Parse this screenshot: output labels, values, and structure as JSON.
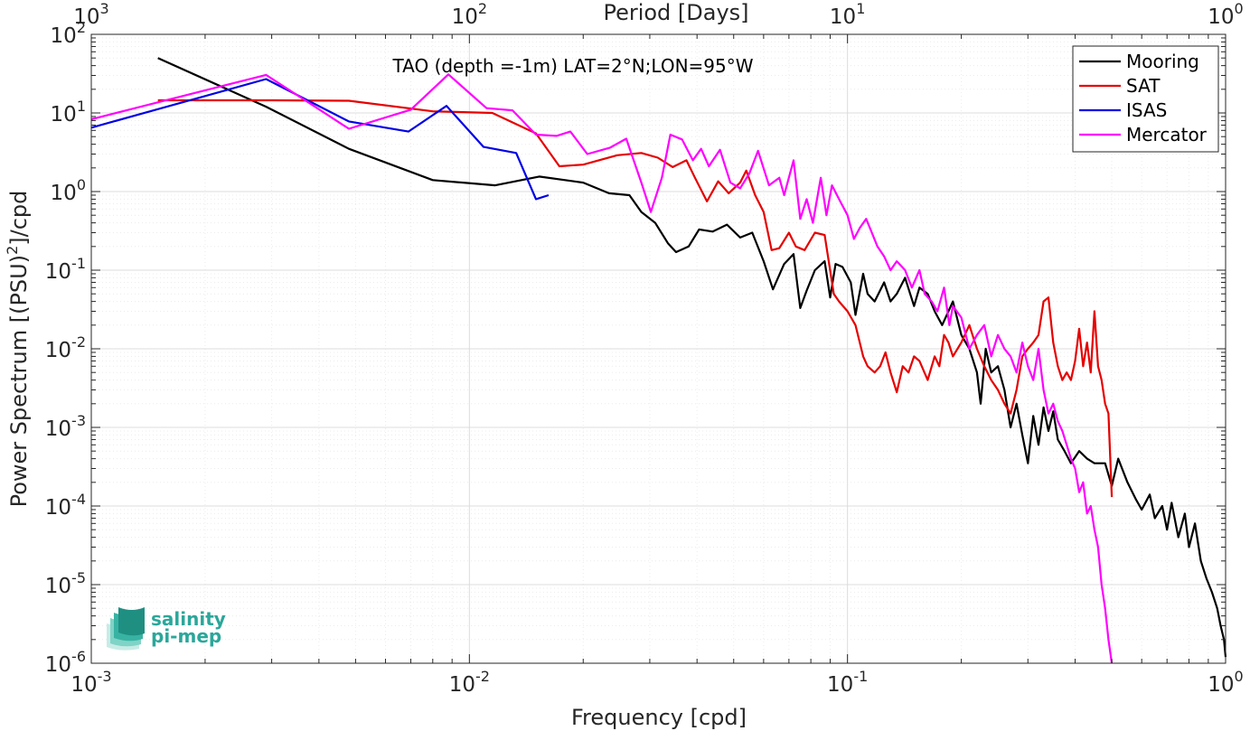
{
  "chart_data": {
    "type": "line",
    "title": "TAO (depth =-1m) LAT=2°N;LON=95°W",
    "xlabel": "Frequency [cpd]",
    "ylabel_main": "Power Spectrum [(PSU)",
    "ylabel_sup": "2",
    "ylabel_tail": "]/cpd",
    "top_xlabel": "Period [Days]",
    "x_scale": "log",
    "y_scale": "log",
    "xlim": [
      0.001,
      1
    ],
    "ylim": [
      1e-06,
      100
    ],
    "grid": true,
    "legend_position": "top-right",
    "x_ticks": [
      {
        "value": 0.001,
        "base": "10",
        "exp": "-3"
      },
      {
        "value": 0.01,
        "base": "10",
        "exp": "-2"
      },
      {
        "value": 0.1,
        "base": "10",
        "exp": "-1"
      },
      {
        "value": 1,
        "base": "10",
        "exp": "0"
      }
    ],
    "y_ticks": [
      {
        "value": 100,
        "base": "10",
        "exp": "2"
      },
      {
        "value": 10,
        "base": "10",
        "exp": "1"
      },
      {
        "value": 1,
        "base": "10",
        "exp": "0"
      },
      {
        "value": 0.1,
        "base": "10",
        "exp": "-1"
      },
      {
        "value": 0.01,
        "base": "10",
        "exp": "-2"
      },
      {
        "value": 0.001,
        "base": "10",
        "exp": "-3"
      },
      {
        "value": 0.0001,
        "base": "10",
        "exp": "-4"
      },
      {
        "value": 1e-05,
        "base": "10",
        "exp": "-5"
      },
      {
        "value": 1e-06,
        "base": "10",
        "exp": "-6"
      }
    ],
    "top_ticks": [
      {
        "frequency": 0.001,
        "base": "10",
        "exp": "3"
      },
      {
        "frequency": 0.01,
        "base": "10",
        "exp": "2"
      },
      {
        "frequency": 0.1,
        "base": "10",
        "exp": "1"
      },
      {
        "frequency": 1,
        "base": "10",
        "exp": "0"
      }
    ],
    "series": [
      {
        "name": "Mooring",
        "color": "#000000",
        "points": [
          [
            0.0015,
            50
          ],
          [
            0.0029,
            12
          ],
          [
            0.0048,
            3.5
          ],
          [
            0.008,
            1.4
          ],
          [
            0.0117,
            1.2
          ],
          [
            0.0153,
            1.55
          ],
          [
            0.02,
            1.3
          ],
          [
            0.0234,
            0.95
          ],
          [
            0.0265,
            0.9
          ],
          [
            0.0285,
            0.55
          ],
          [
            0.031,
            0.4
          ],
          [
            0.0335,
            0.22
          ],
          [
            0.0352,
            0.17
          ],
          [
            0.038,
            0.2
          ],
          [
            0.0405,
            0.33
          ],
          [
            0.044,
            0.31
          ],
          [
            0.048,
            0.38
          ],
          [
            0.052,
            0.26
          ],
          [
            0.056,
            0.3
          ],
          [
            0.06,
            0.13
          ],
          [
            0.0635,
            0.057
          ],
          [
            0.068,
            0.12
          ],
          [
            0.072,
            0.16
          ],
          [
            0.075,
            0.033
          ],
          [
            0.078,
            0.055
          ],
          [
            0.082,
            0.1
          ],
          [
            0.087,
            0.13
          ],
          [
            0.09,
            0.045
          ],
          [
            0.093,
            0.12
          ],
          [
            0.097,
            0.11
          ],
          [
            0.102,
            0.07
          ],
          [
            0.105,
            0.027
          ],
          [
            0.11,
            0.09
          ],
          [
            0.113,
            0.05
          ],
          [
            0.118,
            0.04
          ],
          [
            0.125,
            0.07
          ],
          [
            0.13,
            0.04
          ],
          [
            0.135,
            0.05
          ],
          [
            0.142,
            0.08
          ],
          [
            0.15,
            0.035
          ],
          [
            0.155,
            0.06
          ],
          [
            0.163,
            0.05
          ],
          [
            0.17,
            0.03
          ],
          [
            0.178,
            0.02
          ],
          [
            0.185,
            0.03
          ],
          [
            0.19,
            0.04
          ],
          [
            0.2,
            0.015
          ],
          [
            0.21,
            0.01
          ],
          [
            0.22,
            0.005
          ],
          [
            0.225,
            0.002
          ],
          [
            0.232,
            0.01
          ],
          [
            0.24,
            0.005
          ],
          [
            0.25,
            0.006
          ],
          [
            0.26,
            0.003
          ],
          [
            0.27,
            0.001
          ],
          [
            0.28,
            0.002
          ],
          [
            0.29,
            0.0008
          ],
          [
            0.3,
            0.00035
          ],
          [
            0.31,
            0.0014
          ],
          [
            0.32,
            0.0006
          ],
          [
            0.33,
            0.0018
          ],
          [
            0.34,
            0.0009
          ],
          [
            0.35,
            0.0016
          ],
          [
            0.36,
            0.0007
          ],
          [
            0.375,
            0.0005
          ],
          [
            0.39,
            0.00035
          ],
          [
            0.41,
            0.0005
          ],
          [
            0.43,
            0.0004
          ],
          [
            0.45,
            0.00035
          ],
          [
            0.48,
            0.00035
          ],
          [
            0.5,
            0.00018
          ],
          [
            0.52,
            0.0004
          ],
          [
            0.55,
            0.0002
          ],
          [
            0.58,
            0.00012
          ],
          [
            0.6,
            9e-05
          ],
          [
            0.63,
            0.00014
          ],
          [
            0.65,
            7e-05
          ],
          [
            0.68,
            0.0001
          ],
          [
            0.7,
            5e-05
          ],
          [
            0.72,
            0.00011
          ],
          [
            0.75,
            4e-05
          ],
          [
            0.78,
            8e-05
          ],
          [
            0.8,
            3e-05
          ],
          [
            0.83,
            6e-05
          ],
          [
            0.86,
            2e-05
          ],
          [
            0.89,
            1.2e-05
          ],
          [
            0.92,
            8e-06
          ],
          [
            0.95,
            5e-06
          ],
          [
            0.97,
            3e-06
          ],
          [
            0.99,
            2e-06
          ],
          [
            1.0,
            1.2e-06
          ]
        ]
      },
      {
        "name": "SAT",
        "color": "#e60000",
        "points": [
          [
            0.0015,
            14.5
          ],
          [
            0.003,
            14.5
          ],
          [
            0.0048,
            14.3
          ],
          [
            0.008,
            10.5
          ],
          [
            0.0115,
            10
          ],
          [
            0.015,
            5.5
          ],
          [
            0.0173,
            2.1
          ],
          [
            0.02,
            2.2
          ],
          [
            0.0246,
            2.9
          ],
          [
            0.0285,
            3.1
          ],
          [
            0.0315,
            2.7
          ],
          [
            0.0345,
            2.05
          ],
          [
            0.0375,
            2.5
          ],
          [
            0.0395,
            1.5
          ],
          [
            0.0425,
            0.75
          ],
          [
            0.0455,
            1.35
          ],
          [
            0.0485,
            0.95
          ],
          [
            0.052,
            1.3
          ],
          [
            0.054,
            1.85
          ],
          [
            0.057,
            0.9
          ],
          [
            0.06,
            0.55
          ],
          [
            0.063,
            0.18
          ],
          [
            0.066,
            0.19
          ],
          [
            0.07,
            0.3
          ],
          [
            0.073,
            0.2
          ],
          [
            0.077,
            0.18
          ],
          [
            0.082,
            0.3
          ],
          [
            0.087,
            0.28
          ],
          [
            0.092,
            0.05
          ],
          [
            0.095,
            0.04
          ],
          [
            0.1,
            0.03
          ],
          [
            0.105,
            0.02
          ],
          [
            0.11,
            0.008
          ],
          [
            0.113,
            0.006
          ],
          [
            0.118,
            0.005
          ],
          [
            0.122,
            0.006
          ],
          [
            0.126,
            0.009
          ],
          [
            0.13,
            0.005
          ],
          [
            0.135,
            0.0028
          ],
          [
            0.14,
            0.006
          ],
          [
            0.145,
            0.005
          ],
          [
            0.15,
            0.008
          ],
          [
            0.155,
            0.007
          ],
          [
            0.163,
            0.004
          ],
          [
            0.17,
            0.008
          ],
          [
            0.175,
            0.006
          ],
          [
            0.18,
            0.015
          ],
          [
            0.185,
            0.012
          ],
          [
            0.19,
            0.008
          ],
          [
            0.2,
            0.012
          ],
          [
            0.21,
            0.02
          ],
          [
            0.22,
            0.01
          ],
          [
            0.23,
            0.006
          ],
          [
            0.24,
            0.004
          ],
          [
            0.25,
            0.003
          ],
          [
            0.26,
            0.002
          ],
          [
            0.27,
            0.0015
          ],
          [
            0.28,
            0.003
          ],
          [
            0.29,
            0.008
          ],
          [
            0.3,
            0.01
          ],
          [
            0.31,
            0.012
          ],
          [
            0.32,
            0.015
          ],
          [
            0.33,
            0.04
          ],
          [
            0.34,
            0.045
          ],
          [
            0.35,
            0.012
          ],
          [
            0.36,
            0.006
          ],
          [
            0.37,
            0.004
          ],
          [
            0.38,
            0.005
          ],
          [
            0.39,
            0.004
          ],
          [
            0.4,
            0.007
          ],
          [
            0.41,
            0.018
          ],
          [
            0.42,
            0.006
          ],
          [
            0.43,
            0.012
          ],
          [
            0.44,
            0.005
          ],
          [
            0.45,
            0.03
          ],
          [
            0.46,
            0.006
          ],
          [
            0.47,
            0.004
          ],
          [
            0.48,
            0.002
          ],
          [
            0.49,
            0.0015
          ],
          [
            0.5,
            0.00013
          ]
        ]
      },
      {
        "name": "ISAS",
        "color": "#0000e6",
        "points": [
          [
            0.001,
            6.5
          ],
          [
            0.0029,
            27
          ],
          [
            0.0048,
            7.8
          ],
          [
            0.0069,
            5.8
          ],
          [
            0.0087,
            12.3
          ],
          [
            0.0109,
            3.7
          ],
          [
            0.0133,
            3.1
          ],
          [
            0.015,
            0.8
          ],
          [
            0.0162,
            0.9
          ]
        ]
      },
      {
        "name": "Mercator",
        "color": "#ff00ff",
        "points": [
          [
            0.001,
            8.3
          ],
          [
            0.0029,
            30.5
          ],
          [
            0.0048,
            6.3
          ],
          [
            0.007,
            11
          ],
          [
            0.0088,
            31
          ],
          [
            0.0111,
            11.5
          ],
          [
            0.013,
            10.8
          ],
          [
            0.015,
            5.3
          ],
          [
            0.017,
            5.1
          ],
          [
            0.0185,
            5.8
          ],
          [
            0.0205,
            3
          ],
          [
            0.0235,
            3.6
          ],
          [
            0.026,
            4.7
          ],
          [
            0.0285,
            1.3
          ],
          [
            0.0302,
            0.55
          ],
          [
            0.0323,
            1.5
          ],
          [
            0.034,
            5.3
          ],
          [
            0.0365,
            4.6
          ],
          [
            0.039,
            2.5
          ],
          [
            0.041,
            3.5
          ],
          [
            0.043,
            2.1
          ],
          [
            0.046,
            3.4
          ],
          [
            0.049,
            1.3
          ],
          [
            0.052,
            1.1
          ],
          [
            0.055,
            1.7
          ],
          [
            0.058,
            3.3
          ],
          [
            0.062,
            1.2
          ],
          [
            0.066,
            1.5
          ],
          [
            0.068,
            0.9
          ],
          [
            0.072,
            2.5
          ],
          [
            0.075,
            0.45
          ],
          [
            0.078,
            0.8
          ],
          [
            0.081,
            0.4
          ],
          [
            0.085,
            1.5
          ],
          [
            0.088,
            0.5
          ],
          [
            0.091,
            1.2
          ],
          [
            0.095,
            0.8
          ],
          [
            0.1,
            0.5
          ],
          [
            0.104,
            0.25
          ],
          [
            0.108,
            0.35
          ],
          [
            0.112,
            0.45
          ],
          [
            0.116,
            0.3
          ],
          [
            0.12,
            0.2
          ],
          [
            0.125,
            0.15
          ],
          [
            0.13,
            0.1
          ],
          [
            0.135,
            0.13
          ],
          [
            0.142,
            0.1
          ],
          [
            0.148,
            0.06
          ],
          [
            0.155,
            0.1
          ],
          [
            0.16,
            0.05
          ],
          [
            0.167,
            0.04
          ],
          [
            0.173,
            0.03
          ],
          [
            0.18,
            0.06
          ],
          [
            0.186,
            0.02
          ],
          [
            0.19,
            0.035
          ],
          [
            0.2,
            0.025
          ],
          [
            0.21,
            0.01
          ],
          [
            0.22,
            0.015
          ],
          [
            0.23,
            0.02
          ],
          [
            0.24,
            0.008
          ],
          [
            0.25,
            0.015
          ],
          [
            0.26,
            0.01
          ],
          [
            0.27,
            0.008
          ],
          [
            0.28,
            0.005
          ],
          [
            0.29,
            0.012
          ],
          [
            0.3,
            0.006
          ],
          [
            0.31,
            0.004
          ],
          [
            0.32,
            0.01
          ],
          [
            0.33,
            0.003
          ],
          [
            0.34,
            0.0015
          ],
          [
            0.35,
            0.002
          ],
          [
            0.36,
            0.0012
          ],
          [
            0.37,
            0.0009
          ],
          [
            0.38,
            0.0006
          ],
          [
            0.39,
            0.0004
          ],
          [
            0.4,
            0.0003
          ],
          [
            0.41,
            0.00015
          ],
          [
            0.42,
            0.0002
          ],
          [
            0.43,
            8e-05
          ],
          [
            0.44,
            0.0001
          ],
          [
            0.45,
            5e-05
          ],
          [
            0.46,
            3e-05
          ],
          [
            0.47,
            1e-05
          ],
          [
            0.48,
            5e-06
          ],
          [
            0.49,
            2e-06
          ],
          [
            0.5,
            8e-07
          ]
        ]
      }
    ]
  },
  "logo": {
    "line1": "salinity",
    "line2": "pi-mep",
    "color": "#2ba79a"
  }
}
